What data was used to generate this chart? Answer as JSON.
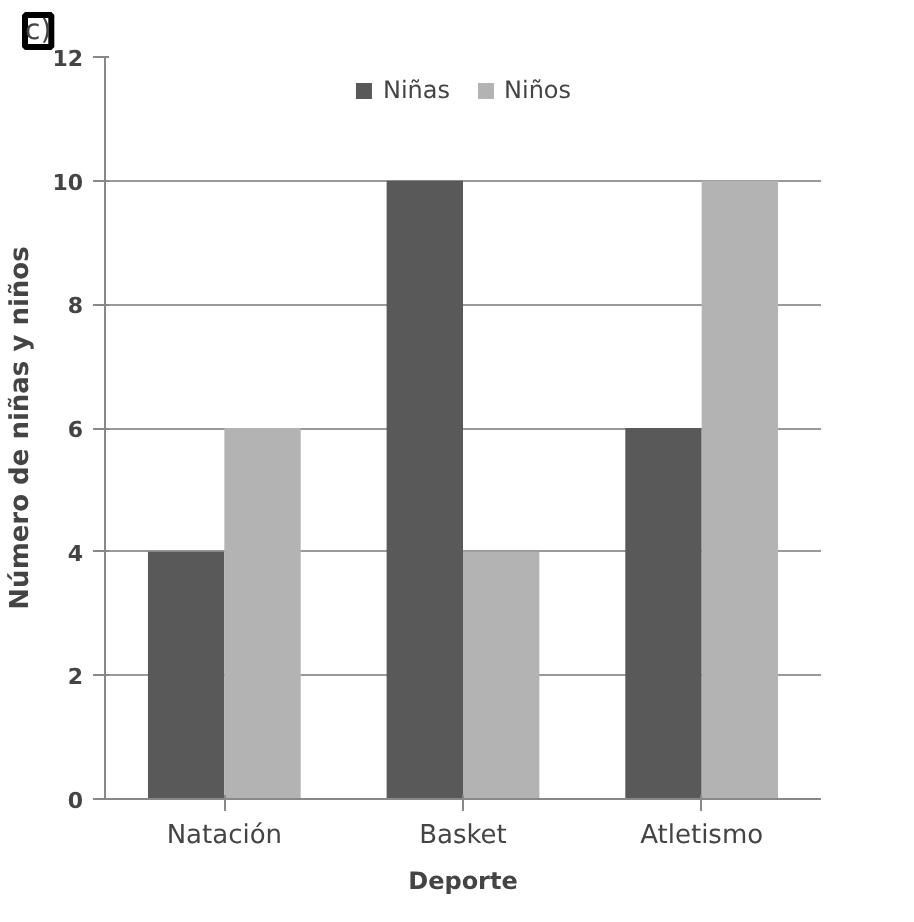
{
  "chart_data": {
    "type": "bar",
    "xlabel": "Deporte",
    "ylabel": "Número de niñas y niños",
    "annotations": [
      "c)"
    ],
    "categories": [
      "Natación",
      "Basket",
      "Atletismo"
    ],
    "series": [
      {
        "name": "Niñas",
        "color": "#595959",
        "values": [
          4,
          10,
          6
        ]
      },
      {
        "name": "Niños",
        "color": "#b3b3b3",
        "values": [
          6,
          4,
          10
        ]
      }
    ],
    "ylim": [
      0,
      12
    ],
    "yticks": [
      0,
      2,
      4,
      6,
      8,
      10,
      12
    ],
    "grid": "y",
    "legend": "top"
  }
}
